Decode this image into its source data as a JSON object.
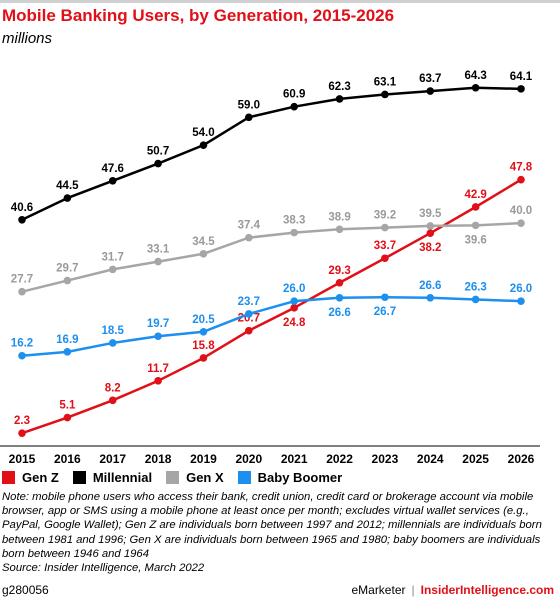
{
  "header": {
    "title": "Mobile Banking Users, by Generation, 2015-2026",
    "subtitle": "millions"
  },
  "chart_data": {
    "type": "line",
    "title": "Mobile Banking Users, by Generation, 2015-2026",
    "subtitle": "millions",
    "categories": [
      "2015",
      "2016",
      "2017",
      "2018",
      "2019",
      "2020",
      "2021",
      "2022",
      "2023",
      "2024",
      "2025",
      "2026"
    ],
    "ylim": [
      0,
      70
    ],
    "grid": false,
    "legend_position": "bottom-left",
    "series": [
      {
        "name": "Gen Z",
        "color": "#e10f17",
        "values": [
          2.3,
          5.1,
          8.2,
          11.7,
          15.8,
          20.7,
          24.8,
          29.3,
          33.7,
          38.2,
          42.9,
          47.8
        ]
      },
      {
        "name": "Millennial",
        "color": "#000000",
        "values": [
          40.6,
          44.5,
          47.6,
          50.7,
          54.0,
          59.0,
          60.9,
          62.3,
          63.1,
          63.7,
          64.3,
          64.1
        ]
      },
      {
        "name": "Gen X",
        "color": "#a6a6a6",
        "values": [
          27.7,
          29.7,
          31.7,
          33.1,
          34.5,
          37.4,
          38.3,
          38.9,
          39.2,
          39.5,
          39.6,
          40.0
        ]
      },
      {
        "name": "Baby Boomer",
        "color": "#1c8fef",
        "values": [
          16.2,
          16.9,
          18.5,
          19.7,
          20.5,
          23.7,
          26.0,
          26.6,
          26.7,
          26.6,
          26.3,
          26.0
        ]
      }
    ],
    "data_labels": [
      [
        "2.3",
        "5.1",
        "8.2",
        "11.7",
        "15.8",
        "20.7",
        "24.8",
        "29.3",
        "33.7",
        "38.2",
        "42.9",
        "47.8"
      ],
      [
        "40.6",
        "44.5",
        "47.6",
        "50.7",
        "54.0",
        "59.0",
        "60.9",
        "62.3",
        "63.1",
        "63.7",
        "64.3",
        "64.1"
      ],
      [
        "27.7",
        "29.7",
        "31.7",
        "33.1",
        "34.5",
        "37.4",
        "38.3",
        "38.9",
        "39.2",
        "39.5",
        "39.6",
        "40.0"
      ],
      [
        "16.2",
        "16.9",
        "18.5",
        "19.7",
        "20.5",
        "23.7",
        "26.0",
        "26.6",
        "26.7",
        "26.6",
        "26.3",
        "26.0"
      ]
    ]
  },
  "note": "Note: mobile phone users who access their bank, credit union, credit card or brokerage account via mobile browser, app or SMS using a mobile phone at least once per month; excludes virtual wallet services (e.g., PayPal, Google Wallet); Gen Z are individuals born between 1997 and 2012; millennials are individuals born between 1981 and 1996; Gen X are individuals born between 1965 and 1980; baby boomers are individuals born between 1946 and 1964",
  "source": "Source: Insider Intelligence, March 2022",
  "footer": {
    "chart_id": "g280056",
    "brand_left": "eMarketer",
    "separator": "|",
    "brand_right": "InsiderIntelligence.com"
  }
}
